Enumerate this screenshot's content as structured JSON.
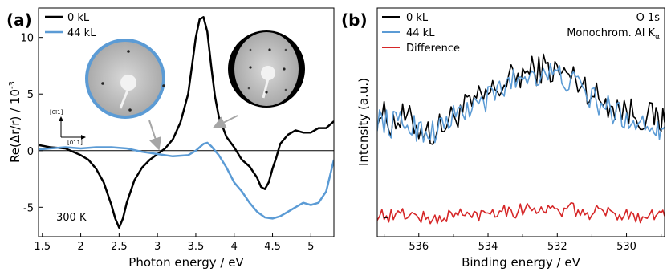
{
  "chart_data": [
    {
      "panel_label": "(a)",
      "type": "line",
      "xlabel": "Photon energy / eV",
      "ylabel": "Re(Δr/r) / 10",
      "ylabel_exp": "-3",
      "xlim": [
        1.45,
        5.3
      ],
      "ylim": [
        -7.6,
        12.6
      ],
      "xticks": [
        "1.5",
        "2",
        "2.5",
        "3",
        "3.5",
        "4",
        "4.5",
        "5"
      ],
      "xtick_values": [
        1.5,
        2,
        2.5,
        3,
        3.5,
        4,
        4.5,
        5
      ],
      "yticks": [
        "-5",
        "0",
        "5",
        "10"
      ],
      "ytick_values": [
        -5,
        0,
        5,
        10
      ],
      "annotation": "300 K",
      "inset_axis_labels": [
        "[0ī1]",
        "[011]"
      ],
      "zero_line": true,
      "series": [
        {
          "name": "0 kL",
          "color": "#000000",
          "x": [
            1.45,
            1.6,
            1.8,
            2.0,
            2.1,
            2.2,
            2.3,
            2.4,
            2.45,
            2.5,
            2.55,
            2.6,
            2.7,
            2.8,
            2.9,
            3.0,
            3.1,
            3.2,
            3.3,
            3.4,
            3.45,
            3.5,
            3.55,
            3.6,
            3.65,
            3.7,
            3.75,
            3.8,
            3.9,
            4.0,
            4.1,
            4.2,
            4.3,
            4.35,
            4.4,
            4.45,
            4.5,
            4.55,
            4.6,
            4.7,
            4.8,
            4.9,
            5.0,
            5.1,
            5.2,
            5.3
          ],
          "y": [
            0.5,
            0.3,
            0.2,
            -0.4,
            -0.8,
            -1.6,
            -2.8,
            -4.8,
            -6.0,
            -6.8,
            -6.0,
            -4.6,
            -2.6,
            -1.5,
            -0.8,
            -0.3,
            0.2,
            1.0,
            2.5,
            5.0,
            7.5,
            10.0,
            11.6,
            11.8,
            10.5,
            7.5,
            4.8,
            3.0,
            1.2,
            0.3,
            -0.8,
            -1.4,
            -2.4,
            -3.2,
            -3.4,
            -2.8,
            -1.6,
            -0.6,
            0.6,
            1.4,
            1.8,
            1.6,
            1.6,
            2.0,
            2.0,
            2.6
          ]
        },
        {
          "name": "44 kL",
          "color": "#5b9bd5",
          "x": [
            1.45,
            1.6,
            1.8,
            2.0,
            2.2,
            2.4,
            2.6,
            2.8,
            3.0,
            3.2,
            3.4,
            3.5,
            3.6,
            3.65,
            3.7,
            3.8,
            3.9,
            4.0,
            4.1,
            4.2,
            4.3,
            4.4,
            4.5,
            4.6,
            4.7,
            4.8,
            4.9,
            5.0,
            5.1,
            5.2,
            5.3
          ],
          "y": [
            0.1,
            0.2,
            0.3,
            0.2,
            0.3,
            0.3,
            0.2,
            -0.1,
            -0.3,
            -0.5,
            -0.4,
            0.0,
            0.6,
            0.7,
            0.4,
            -0.4,
            -1.5,
            -2.8,
            -3.6,
            -4.6,
            -5.4,
            -5.9,
            -6.0,
            -5.8,
            -5.4,
            -5.0,
            -4.6,
            -4.8,
            -4.6,
            -3.6,
            -0.8
          ]
        }
      ]
    },
    {
      "panel_label": "(b)",
      "type": "line",
      "xlabel": "Binding energy / eV",
      "ylabel": "Intensity (a.u.)",
      "xlim": [
        537.2,
        528.9
      ],
      "xaxis_reversed": true,
      "xticks": [
        "536",
        "534",
        "532",
        "530"
      ],
      "xtick_values": [
        536,
        534,
        532,
        530
      ],
      "annotation_line1": "O 1s",
      "annotation_line2": "Monochrom. Al K",
      "annotation_subscript": "α",
      "y_marker": "–",
      "series": [
        {
          "name": "0 kL",
          "color": "#000000",
          "x": [
            537.2,
            536.8,
            536.4,
            536.0,
            535.6,
            535.2,
            534.8,
            534.4,
            534.0,
            533.6,
            533.2,
            532.8,
            532.4,
            532.0,
            531.6,
            531.2,
            530.8,
            530.4,
            530.0,
            529.6,
            529.2,
            528.9
          ],
          "y": [
            0.55,
            0.5,
            0.52,
            0.48,
            0.45,
            0.5,
            0.55,
            0.58,
            0.62,
            0.66,
            0.7,
            0.72,
            0.74,
            0.72,
            0.7,
            0.66,
            0.6,
            0.58,
            0.55,
            0.53,
            0.52,
            0.5
          ]
        },
        {
          "name": "44 kL",
          "color": "#5b9bd5",
          "x": [
            537.2,
            536.8,
            536.4,
            536.0,
            535.6,
            535.2,
            534.8,
            534.4,
            534.0,
            533.6,
            533.2,
            532.8,
            532.4,
            532.0,
            531.6,
            531.2,
            530.8,
            530.4,
            530.0,
            529.6,
            529.2,
            528.9
          ],
          "y": [
            0.52,
            0.49,
            0.5,
            0.47,
            0.46,
            0.5,
            0.54,
            0.57,
            0.6,
            0.65,
            0.69,
            0.71,
            0.72,
            0.7,
            0.68,
            0.63,
            0.58,
            0.55,
            0.52,
            0.5,
            0.49,
            0.48
          ]
        },
        {
          "name": "Difference",
          "color": "#d62728",
          "x": [
            537.2,
            536.8,
            536.4,
            536.0,
            535.6,
            535.2,
            534.8,
            534.4,
            534.0,
            533.6,
            533.2,
            532.8,
            532.4,
            532.0,
            531.6,
            531.2,
            530.8,
            530.4,
            530.0,
            529.6,
            529.2,
            528.9
          ],
          "y": [
            0.1,
            0.09,
            0.1,
            0.09,
            0.07,
            0.09,
            0.1,
            0.09,
            0.11,
            0.12,
            0.11,
            0.13,
            0.12,
            0.11,
            0.12,
            0.1,
            0.11,
            0.1,
            0.1,
            0.09,
            0.1,
            0.09
          ]
        }
      ]
    }
  ]
}
